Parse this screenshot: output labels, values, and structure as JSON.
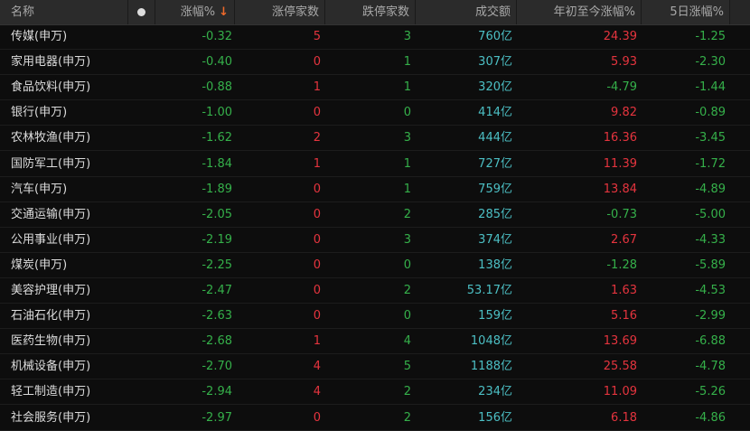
{
  "header": {
    "name": "名称",
    "dot_icon": "circle-dot-icon",
    "change_pct": "涨幅%",
    "sort_icon": "arrow-down-icon",
    "sort_arrow": "↓",
    "limit_up": "涨停家数",
    "limit_down": "跌停家数",
    "turnover": "成交额",
    "ytd_pct": "年初至今涨幅%",
    "five_day_pct": "5日涨幅%"
  },
  "colors": {
    "up": "#e5343e",
    "down": "#35b04a",
    "turnover": "#4cbfc4"
  },
  "rows": [
    {
      "name": "传媒(申万)",
      "change": "-0.32",
      "up": "5",
      "down": "3",
      "turnover": "760亿",
      "ytd": "24.39",
      "d5": "-1.25"
    },
    {
      "name": "家用电器(申万)",
      "change": "-0.40",
      "up": "0",
      "down": "1",
      "turnover": "307亿",
      "ytd": "5.93",
      "d5": "-2.30"
    },
    {
      "name": "食品饮料(申万)",
      "change": "-0.88",
      "up": "1",
      "down": "1",
      "turnover": "320亿",
      "ytd": "-4.79",
      "d5": "-1.44"
    },
    {
      "name": "银行(申万)",
      "change": "-1.00",
      "up": "0",
      "down": "0",
      "turnover": "414亿",
      "ytd": "9.82",
      "d5": "-0.89"
    },
    {
      "name": "农林牧渔(申万)",
      "change": "-1.62",
      "up": "2",
      "down": "3",
      "turnover": "444亿",
      "ytd": "16.36",
      "d5": "-3.45"
    },
    {
      "name": "国防军工(申万)",
      "change": "-1.84",
      "up": "1",
      "down": "1",
      "turnover": "727亿",
      "ytd": "11.39",
      "d5": "-1.72"
    },
    {
      "name": "汽车(申万)",
      "change": "-1.89",
      "up": "0",
      "down": "1",
      "turnover": "759亿",
      "ytd": "13.84",
      "d5": "-4.89"
    },
    {
      "name": "交通运输(申万)",
      "change": "-2.05",
      "up": "0",
      "down": "2",
      "turnover": "285亿",
      "ytd": "-0.73",
      "d5": "-5.00"
    },
    {
      "name": "公用事业(申万)",
      "change": "-2.19",
      "up": "0",
      "down": "3",
      "turnover": "374亿",
      "ytd": "2.67",
      "d5": "-4.33"
    },
    {
      "name": "煤炭(申万)",
      "change": "-2.25",
      "up": "0",
      "down": "0",
      "turnover": "138亿",
      "ytd": "-1.28",
      "d5": "-5.89"
    },
    {
      "name": "美容护理(申万)",
      "change": "-2.47",
      "up": "0",
      "down": "2",
      "turnover": "53.17亿",
      "ytd": "1.63",
      "d5": "-4.53"
    },
    {
      "name": "石油石化(申万)",
      "change": "-2.63",
      "up": "0",
      "down": "0",
      "turnover": "159亿",
      "ytd": "5.16",
      "d5": "-2.99"
    },
    {
      "name": "医药生物(申万)",
      "change": "-2.68",
      "up": "1",
      "down": "4",
      "turnover": "1048亿",
      "ytd": "13.69",
      "d5": "-6.88"
    },
    {
      "name": "机械设备(申万)",
      "change": "-2.70",
      "up": "4",
      "down": "5",
      "turnover": "1188亿",
      "ytd": "25.58",
      "d5": "-4.78"
    },
    {
      "name": "轻工制造(申万)",
      "change": "-2.94",
      "up": "4",
      "down": "2",
      "turnover": "234亿",
      "ytd": "11.09",
      "d5": "-5.26"
    },
    {
      "name": "社会服务(申万)",
      "change": "-2.97",
      "up": "0",
      "down": "2",
      "turnover": "156亿",
      "ytd": "6.18",
      "d5": "-4.86"
    }
  ]
}
